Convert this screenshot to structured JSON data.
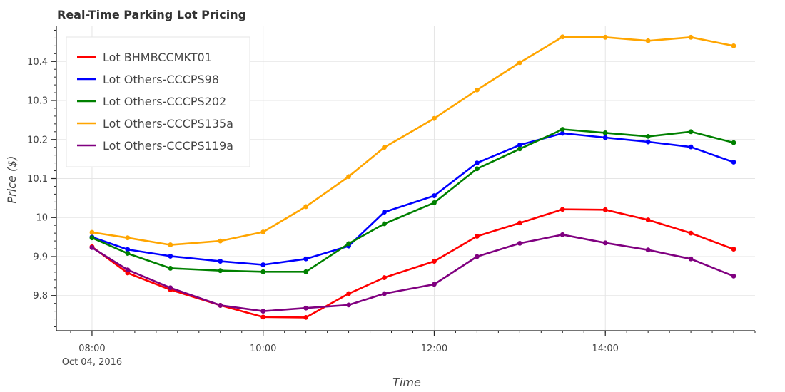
{
  "chart_data": {
    "type": "line",
    "title": "Real-Time Parking Lot Pricing",
    "xlabel": "Time",
    "ylabel": "Price ($)",
    "x_type": "datetime",
    "x": [
      "08:00",
      "08:25",
      "08:55",
      "09:30",
      "10:00",
      "10:30",
      "11:00",
      "11:25",
      "12:00",
      "12:30",
      "13:00",
      "13:30",
      "14:00",
      "14:30",
      "15:00",
      "15:30"
    ],
    "x_ticks": [
      "08:00",
      "10:00",
      "12:00",
      "14:00"
    ],
    "x_tick_sublabel": "Oct 04, 2016",
    "xlim": [
      "07:35",
      "15:45"
    ],
    "y_ticks": [
      "9.8",
      "9.9",
      "10",
      "10.1",
      "10.2",
      "10.3",
      "10.4"
    ],
    "ylim": [
      9.71,
      10.49
    ],
    "grid": true,
    "legend_position": "top-left",
    "series": [
      {
        "name": "Lot BHMBCCMKT01",
        "color": "#ff0000",
        "values": [
          9.925,
          9.858,
          9.815,
          9.775,
          9.745,
          9.744,
          9.805,
          9.846,
          9.888,
          9.952,
          9.986,
          10.021,
          10.02,
          9.994,
          9.96,
          9.919
        ]
      },
      {
        "name": "Lot Others-CCCPS98",
        "color": "#0000ff",
        "values": [
          9.95,
          9.918,
          9.901,
          9.888,
          9.879,
          9.894,
          9.927,
          10.014,
          10.056,
          10.14,
          10.186,
          10.216,
          10.205,
          10.194,
          10.181,
          10.142
        ]
      },
      {
        "name": "Lot Others-CCCPS202",
        "color": "#008000",
        "values": [
          9.948,
          9.908,
          9.87,
          9.864,
          9.861,
          9.861,
          9.933,
          9.984,
          10.038,
          10.125,
          10.176,
          10.226,
          10.217,
          10.208,
          10.22,
          10.192
        ]
      },
      {
        "name": "Lot Others-CCCPS135a",
        "color": "#ffa500",
        "values": [
          9.962,
          9.948,
          9.93,
          9.94,
          9.963,
          10.028,
          10.105,
          10.18,
          10.254,
          10.327,
          10.397,
          10.463,
          10.462,
          10.453,
          10.462,
          10.44
        ]
      },
      {
        "name": "Lot Others-CCCPS119a",
        "color": "#800080",
        "values": [
          9.923,
          9.866,
          9.82,
          9.775,
          9.76,
          9.768,
          9.776,
          9.805,
          9.829,
          9.9,
          9.934,
          9.956,
          9.935,
          9.917,
          9.894,
          9.85
        ]
      }
    ]
  }
}
